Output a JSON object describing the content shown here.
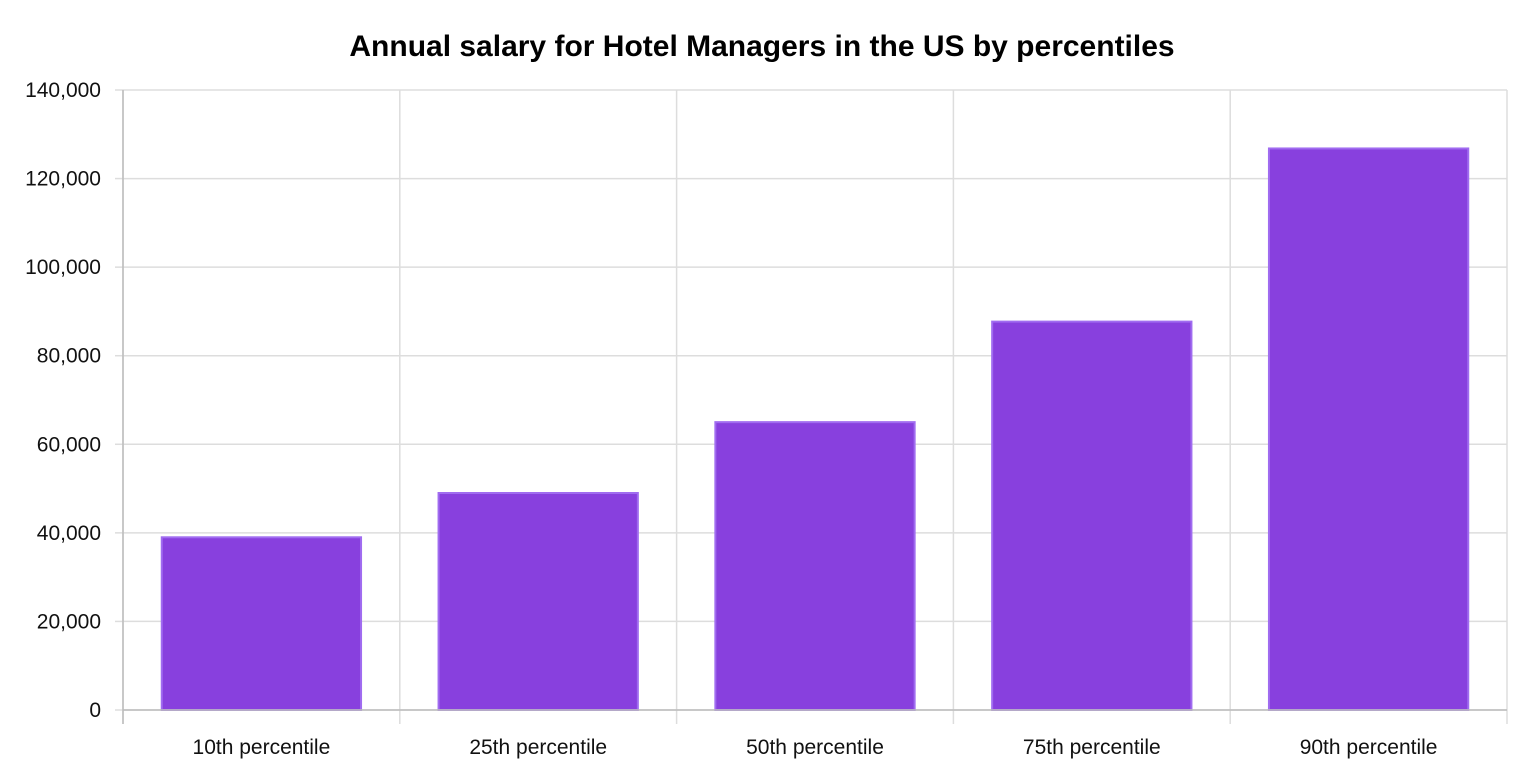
{
  "chart_data": {
    "type": "bar",
    "title": "Annual salary for Hotel Managers in the US by percentiles",
    "xlabel": "",
    "ylabel": "",
    "categories": [
      "10th percentile",
      "25th percentile",
      "50th percentile",
      "75th percentile",
      "90th percentile"
    ],
    "values": [
      39000,
      49000,
      65000,
      87700,
      126800
    ],
    "ylim": [
      0,
      140000
    ],
    "yticks": [
      0,
      20000,
      40000,
      60000,
      80000,
      100000,
      120000,
      140000
    ],
    "ytick_labels": [
      "0",
      "20,000",
      "40,000",
      "60,000",
      "80,000",
      "100,000",
      "120,000",
      "140,000"
    ],
    "grid": true,
    "legend": "none",
    "colors": {
      "bar_fill": "#8840de",
      "bar_stroke": "#a06cf0",
      "grid": "#dddddd",
      "axis": "#bbbbbb"
    }
  }
}
